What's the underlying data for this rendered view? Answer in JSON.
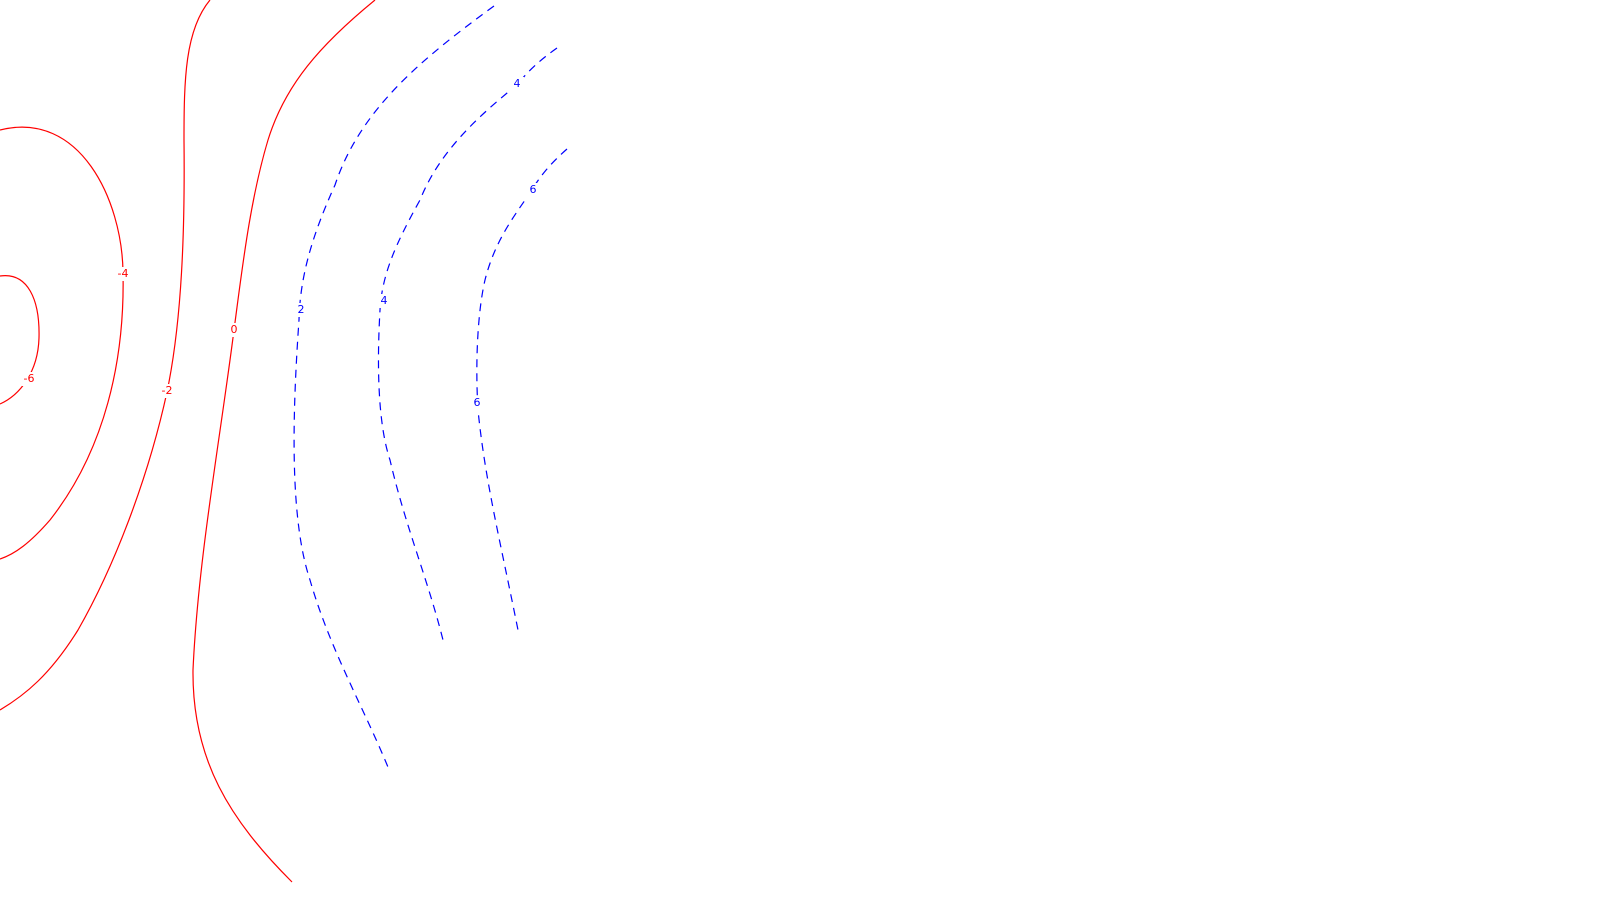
{
  "chart_data": {
    "type": "contour",
    "title": "",
    "xlabel": "",
    "ylabel": "",
    "legend": "none",
    "grid": false,
    "colors": {
      "negative": "#ff0000",
      "positive": "#0000ff",
      "background": "#ffffff"
    },
    "levels": [
      {
        "value": -6,
        "label": "-6",
        "line_style": "solid",
        "color": "#ff0000"
      },
      {
        "value": -4,
        "label": "-4",
        "line_style": "solid",
        "color": "#ff0000"
      },
      {
        "value": -2,
        "label": "-2",
        "line_style": "solid",
        "color": "#ff0000"
      },
      {
        "value": 0,
        "label": "0",
        "line_style": "solid",
        "color": "#ff0000"
      },
      {
        "value": 2,
        "label": "2",
        "line_style": "dashed",
        "color": "#0000ff"
      },
      {
        "value": 4,
        "label": "4",
        "line_style": "dashed",
        "color": "#0000ff"
      },
      {
        "value": 4,
        "label": "4",
        "line_style": "dashed",
        "color": "#0000ff"
      },
      {
        "value": 6,
        "label": "6",
        "line_style": "dashed",
        "color": "#0000ff"
      },
      {
        "value": 6,
        "label": "6",
        "line_style": "dashed",
        "color": "#0000ff"
      }
    ]
  }
}
